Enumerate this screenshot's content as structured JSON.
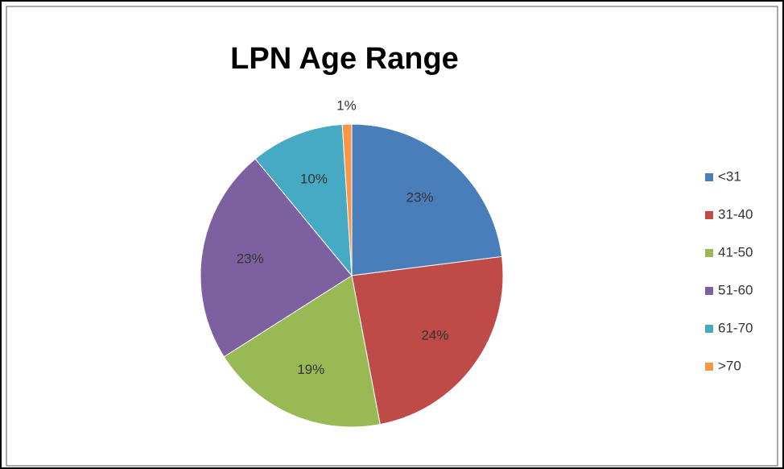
{
  "chart_data": {
    "type": "pie",
    "title": "LPN Age Range",
    "categories": [
      "<31",
      "31-40",
      "41-50",
      "51-60",
      "61-70",
      ">70"
    ],
    "values": [
      23,
      24,
      19,
      23,
      10,
      1
    ],
    "value_labels": [
      "23%",
      "24%",
      "19%",
      "23%",
      "10%",
      "1%"
    ],
    "colors": [
      "#4a7ebb",
      "#be4b48",
      "#98b954",
      "#7d60a0",
      "#46aac5",
      "#f79646"
    ],
    "legend": "right"
  }
}
